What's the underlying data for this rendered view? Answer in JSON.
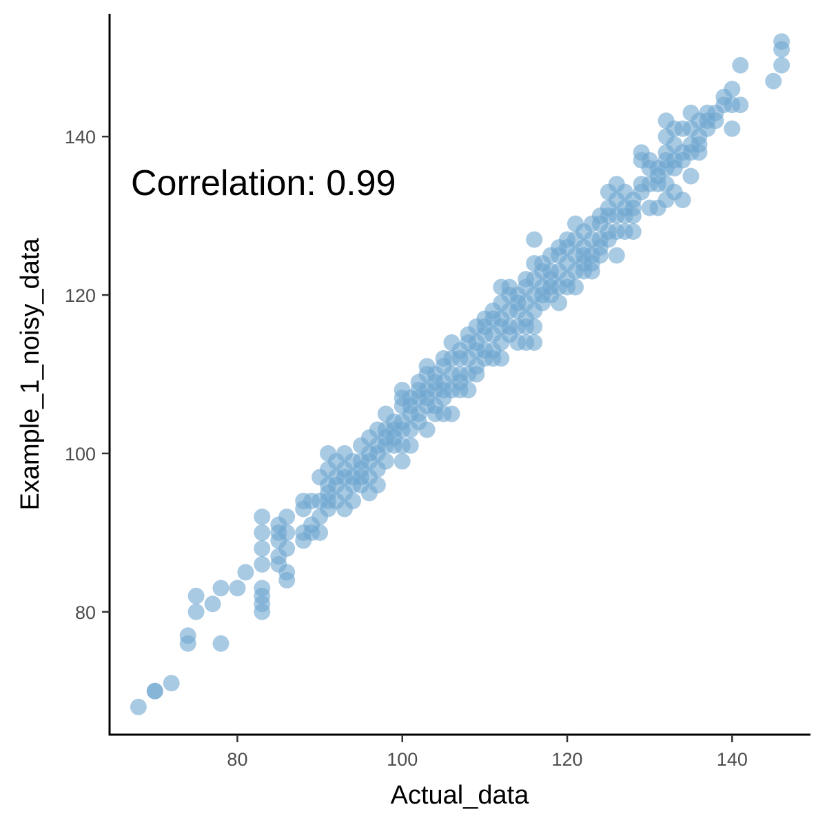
{
  "chart_data": {
    "type": "scatter",
    "xlabel": "Actual_data",
    "ylabel": "Example_1_noisy_data",
    "annotation": "Correlation: 0.99",
    "xlim": [
      64.5,
      149.5
    ],
    "ylim": [
      64.5,
      155.5
    ],
    "x_ticks": [
      80,
      100,
      120,
      140
    ],
    "y_ticks": [
      80,
      100,
      120,
      140
    ],
    "point_color": "#6fa6d0",
    "grid": false,
    "points": [
      [
        68,
        68
      ],
      [
        70,
        70
      ],
      [
        70,
        70
      ],
      [
        72,
        71
      ],
      [
        74,
        77
      ],
      [
        74,
        76
      ],
      [
        75,
        82
      ],
      [
        75,
        80
      ],
      [
        77,
        81
      ],
      [
        78,
        83
      ],
      [
        78,
        76
      ],
      [
        80,
        83
      ],
      [
        81,
        85
      ],
      [
        83,
        92
      ],
      [
        83,
        90
      ],
      [
        83,
        88
      ],
      [
        83,
        86
      ],
      [
        83,
        83
      ],
      [
        83,
        82
      ],
      [
        83,
        81
      ],
      [
        83,
        80
      ],
      [
        85,
        91
      ],
      [
        85,
        90
      ],
      [
        85,
        89
      ],
      [
        85,
        87
      ],
      [
        85,
        86
      ],
      [
        86,
        92
      ],
      [
        86,
        88
      ],
      [
        86,
        85
      ],
      [
        86,
        84
      ],
      [
        86,
        90
      ],
      [
        88,
        94
      ],
      [
        88,
        93
      ],
      [
        88,
        90
      ],
      [
        88,
        89
      ],
      [
        89,
        94
      ],
      [
        89,
        91
      ],
      [
        89,
        90
      ],
      [
        90,
        97
      ],
      [
        90,
        94
      ],
      [
        90,
        92
      ],
      [
        90,
        90
      ],
      [
        91,
        100
      ],
      [
        91,
        98
      ],
      [
        91,
        96
      ],
      [
        91,
        95
      ],
      [
        91,
        94
      ],
      [
        91,
        93
      ],
      [
        92,
        99
      ],
      [
        92,
        97
      ],
      [
        92,
        96
      ],
      [
        92,
        94
      ],
      [
        93,
        100
      ],
      [
        93,
        98
      ],
      [
        93,
        97
      ],
      [
        93,
        95
      ],
      [
        93,
        93
      ],
      [
        94,
        99
      ],
      [
        94,
        97
      ],
      [
        94,
        96
      ],
      [
        94,
        94
      ],
      [
        95,
        101
      ],
      [
        95,
        99
      ],
      [
        95,
        98
      ],
      [
        95,
        97
      ],
      [
        95,
        96
      ],
      [
        96,
        102
      ],
      [
        96,
        100
      ],
      [
        96,
        99
      ],
      [
        96,
        97
      ],
      [
        96,
        95
      ],
      [
        97,
        103
      ],
      [
        97,
        101
      ],
      [
        97,
        100
      ],
      [
        97,
        98
      ],
      [
        97,
        96
      ],
      [
        98,
        105
      ],
      [
        98,
        103
      ],
      [
        98,
        102
      ],
      [
        98,
        101
      ],
      [
        98,
        99
      ],
      [
        99,
        104
      ],
      [
        99,
        103
      ],
      [
        99,
        102
      ],
      [
        99,
        101
      ],
      [
        100,
        108
      ],
      [
        100,
        107
      ],
      [
        100,
        106
      ],
      [
        100,
        104
      ],
      [
        100,
        103
      ],
      [
        100,
        101
      ],
      [
        100,
        99
      ],
      [
        101,
        107
      ],
      [
        101,
        106
      ],
      [
        101,
        105
      ],
      [
        101,
        103
      ],
      [
        101,
        101
      ],
      [
        102,
        109
      ],
      [
        102,
        108
      ],
      [
        102,
        107
      ],
      [
        102,
        105
      ],
      [
        102,
        104
      ],
      [
        103,
        111
      ],
      [
        103,
        110
      ],
      [
        103,
        108
      ],
      [
        103,
        107
      ],
      [
        103,
        106
      ],
      [
        103,
        103
      ],
      [
        104,
        110
      ],
      [
        104,
        109
      ],
      [
        104,
        108
      ],
      [
        104,
        106
      ],
      [
        104,
        105
      ],
      [
        105,
        112
      ],
      [
        105,
        111
      ],
      [
        105,
        109
      ],
      [
        105,
        108
      ],
      [
        105,
        107
      ],
      [
        105,
        105
      ],
      [
        106,
        114
      ],
      [
        106,
        112
      ],
      [
        106,
        110
      ],
      [
        106,
        108
      ],
      [
        106,
        105
      ],
      [
        107,
        113
      ],
      [
        107,
        112
      ],
      [
        107,
        110
      ],
      [
        107,
        109
      ],
      [
        107,
        108
      ],
      [
        108,
        115
      ],
      [
        108,
        114
      ],
      [
        108,
        112
      ],
      [
        108,
        110
      ],
      [
        108,
        108
      ],
      [
        109,
        116
      ],
      [
        109,
        114
      ],
      [
        109,
        113
      ],
      [
        109,
        111
      ],
      [
        109,
        110
      ],
      [
        110,
        117
      ],
      [
        110,
        116
      ],
      [
        110,
        115
      ],
      [
        110,
        113
      ],
      [
        110,
        112
      ],
      [
        111,
        118
      ],
      [
        111,
        117
      ],
      [
        111,
        115
      ],
      [
        111,
        113
      ],
      [
        111,
        112
      ],
      [
        112,
        121
      ],
      [
        112,
        119
      ],
      [
        112,
        117
      ],
      [
        112,
        116
      ],
      [
        112,
        114
      ],
      [
        112,
        112
      ],
      [
        113,
        121
      ],
      [
        113,
        120
      ],
      [
        113,
        118
      ],
      [
        113,
        116
      ],
      [
        113,
        115
      ],
      [
        114,
        120
      ],
      [
        114,
        119
      ],
      [
        114,
        118
      ],
      [
        114,
        116
      ],
      [
        114,
        114
      ],
      [
        115,
        122
      ],
      [
        115,
        121
      ],
      [
        115,
        119
      ],
      [
        115,
        117
      ],
      [
        115,
        116
      ],
      [
        115,
        114
      ],
      [
        116,
        127
      ],
      [
        116,
        124
      ],
      [
        116,
        122
      ],
      [
        116,
        120
      ],
      [
        116,
        118
      ],
      [
        116,
        116
      ],
      [
        116,
        114
      ],
      [
        117,
        124
      ],
      [
        117,
        123
      ],
      [
        117,
        121
      ],
      [
        117,
        120
      ],
      [
        117,
        119
      ],
      [
        118,
        125
      ],
      [
        118,
        123
      ],
      [
        118,
        122
      ],
      [
        118,
        121
      ],
      [
        118,
        120
      ],
      [
        119,
        126
      ],
      [
        119,
        125
      ],
      [
        119,
        123
      ],
      [
        119,
        121
      ],
      [
        119,
        119
      ],
      [
        120,
        127
      ],
      [
        120,
        126
      ],
      [
        120,
        124
      ],
      [
        120,
        122
      ],
      [
        120,
        121
      ],
      [
        121,
        129
      ],
      [
        121,
        127
      ],
      [
        121,
        125
      ],
      [
        121,
        123
      ],
      [
        121,
        121
      ],
      [
        122,
        128
      ],
      [
        122,
        126
      ],
      [
        122,
        125
      ],
      [
        122,
        124
      ],
      [
        122,
        123
      ],
      [
        123,
        129
      ],
      [
        123,
        127
      ],
      [
        123,
        125
      ],
      [
        123,
        124
      ],
      [
        123,
        123
      ],
      [
        124,
        130
      ],
      [
        124,
        129
      ],
      [
        124,
        127
      ],
      [
        124,
        126
      ],
      [
        124,
        125
      ],
      [
        125,
        133
      ],
      [
        125,
        131
      ],
      [
        125,
        130
      ],
      [
        125,
        128
      ],
      [
        125,
        127
      ],
      [
        126,
        134
      ],
      [
        126,
        132
      ],
      [
        126,
        130
      ],
      [
        126,
        128
      ],
      [
        126,
        125
      ],
      [
        127,
        133
      ],
      [
        127,
        131
      ],
      [
        127,
        130
      ],
      [
        127,
        128
      ],
      [
        128,
        132
      ],
      [
        128,
        131
      ],
      [
        128,
        130
      ],
      [
        128,
        128
      ],
      [
        129,
        138
      ],
      [
        129,
        137
      ],
      [
        129,
        134
      ],
      [
        129,
        133
      ],
      [
        130,
        137
      ],
      [
        130,
        136
      ],
      [
        130,
        134
      ],
      [
        130,
        131
      ],
      [
        131,
        136
      ],
      [
        131,
        135
      ],
      [
        131,
        134
      ],
      [
        131,
        131
      ],
      [
        132,
        142
      ],
      [
        132,
        140
      ],
      [
        132,
        138
      ],
      [
        132,
        137
      ],
      [
        132,
        136
      ],
      [
        132,
        134
      ],
      [
        132,
        132
      ],
      [
        133,
        141
      ],
      [
        133,
        139
      ],
      [
        133,
        137
      ],
      [
        133,
        136
      ],
      [
        133,
        133
      ],
      [
        134,
        141
      ],
      [
        134,
        138
      ],
      [
        134,
        137
      ],
      [
        134,
        132
      ],
      [
        135,
        143
      ],
      [
        135,
        141
      ],
      [
        135,
        139
      ],
      [
        135,
        138
      ],
      [
        135,
        135
      ],
      [
        136,
        142
      ],
      [
        136,
        140
      ],
      [
        136,
        139
      ],
      [
        136,
        138
      ],
      [
        137,
        143
      ],
      [
        137,
        142
      ],
      [
        137,
        141
      ],
      [
        138,
        143
      ],
      [
        138,
        142
      ],
      [
        139,
        145
      ],
      [
        139,
        144
      ],
      [
        140,
        146
      ],
      [
        140,
        141
      ],
      [
        140,
        144
      ],
      [
        141,
        149
      ],
      [
        141,
        144
      ],
      [
        145,
        147
      ],
      [
        146,
        152
      ],
      [
        146,
        151
      ],
      [
        146,
        149
      ]
    ]
  }
}
